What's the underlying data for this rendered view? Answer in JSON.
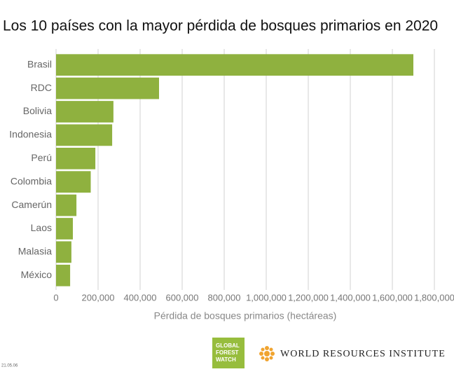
{
  "chart_data": {
    "type": "bar",
    "orientation": "horizontal",
    "title": "Los 10 países con la mayor pérdida de bosques primarios en 2020",
    "xlabel": "Pérdida de bosques primarios (hectáreas)",
    "categories": [
      "Brasil",
      "RDC",
      "Bolivia",
      "Indonesia",
      "Perú",
      "Colombia",
      "Camerún",
      "Laos",
      "Malasia",
      "México"
    ],
    "values": [
      1700000,
      490000,
      273000,
      267000,
      187000,
      165000,
      97000,
      80000,
      73000,
      67000
    ],
    "color": "#8fb13f",
    "xlim": [
      0,
      1800000
    ],
    "xticks": [
      0,
      {
        "value": 200000,
        "label": "200,000"
      },
      {
        "value": 400000,
        "label": "400,000"
      },
      {
        "value": 600000,
        "label": "600,000"
      },
      {
        "value": 800000,
        "label": "800,000"
      },
      {
        "value": 1000000,
        "label": "1,000,000"
      },
      {
        "value": 1200000,
        "label": "1,200,000"
      },
      {
        "value": 1400000,
        "label": "1,400,000"
      },
      {
        "value": 1600000,
        "label": "1,600,000"
      },
      {
        "value": 1800000,
        "label": "1,800,000"
      }
    ],
    "grid": true
  },
  "footer": {
    "date": "21.05.06",
    "gfw": [
      "GLOBAL",
      "FOREST",
      "WATCH"
    ],
    "wri": "WORLD RESOURCES INSTITUTE"
  }
}
